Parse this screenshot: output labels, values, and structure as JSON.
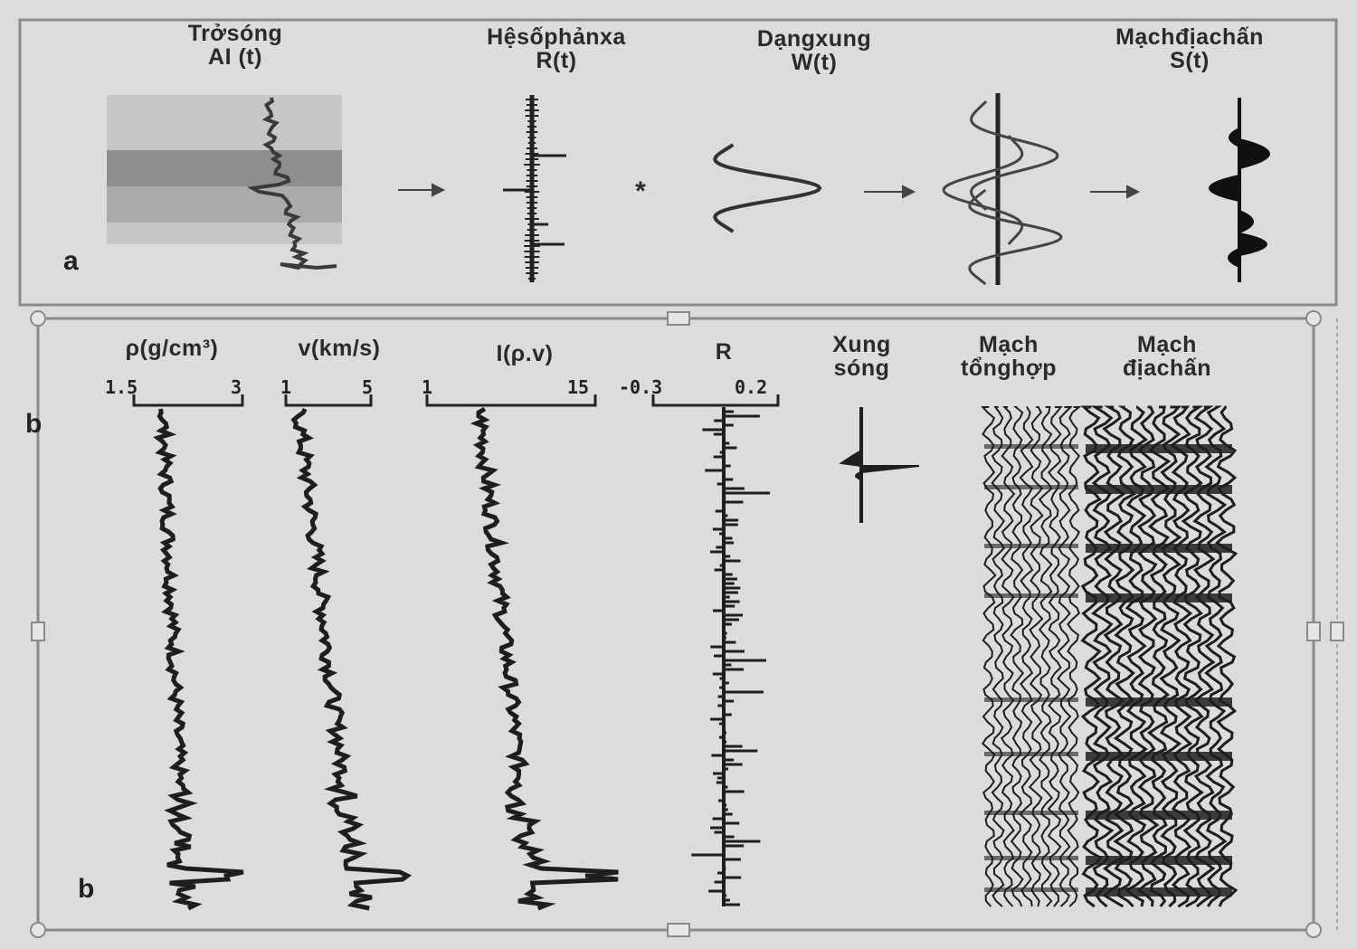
{
  "panel_a": {
    "letter": "a",
    "steps": [
      {
        "name": "Trởsóng",
        "symbol": "AI (t)"
      },
      {
        "name": "Hệsốphảnxa",
        "symbol": "R(t)"
      },
      {
        "name": "Dạngxung",
        "symbol": "W(t)"
      },
      {
        "name": "Mạchđịachấn",
        "symbol": "S(t)"
      }
    ],
    "convolve_symbol": "*"
  },
  "panel_b": {
    "letter": "b",
    "tracks": [
      {
        "label": "ρ(g/cm³)",
        "min": "1.5",
        "max": "3"
      },
      {
        "label": "v(km/s)",
        "min": "1",
        "max": "5"
      },
      {
        "label": "I(ρ.v)",
        "min": "1",
        "max": "15"
      },
      {
        "label": "R",
        "min": "-0.3",
        "max": "0.2"
      }
    ],
    "wavelet_label": [
      "Xung",
      "sóng"
    ],
    "synthetic_label": [
      "Mạch",
      "tổnghợp"
    ],
    "seismic_label": [
      "Mạch",
      "địachấn"
    ]
  },
  "colors": {
    "background": "#dcdcdc",
    "ink": "#1e1e1e",
    "frame": "#8a8a8a",
    "layer_band": "#8e8e8e"
  }
}
